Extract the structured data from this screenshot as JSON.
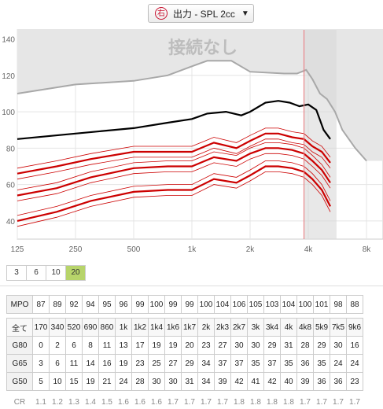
{
  "header": {
    "ear_symbol": "右",
    "title": "出力 - SPL 2cc"
  },
  "chart_data": {
    "type": "line",
    "overlay_text": "接続なし",
    "x_ticks": [
      "125",
      "250",
      "500",
      "1k",
      "2k",
      "4k",
      "8k"
    ],
    "x_tick_values": [
      125,
      250,
      500,
      1000,
      2000,
      4000,
      8000
    ],
    "y_ticks": [
      "40",
      "60",
      "80",
      "100",
      "120",
      "140"
    ],
    "y_tick_values": [
      40,
      60,
      80,
      100,
      120,
      140
    ],
    "xlim": [
      125,
      8000
    ],
    "ylim": [
      30,
      145
    ],
    "log_x": true,
    "marker_frequency": 3800,
    "colors": {
      "main": "#000000",
      "target": "#cc0000",
      "shade": "#e6e6e6",
      "marker": "#e8858a",
      "ucl": "#a8a8a8"
    },
    "series": [
      {
        "role": "ucl",
        "x": [
          125,
          250,
          500,
          750,
          1000,
          1200,
          1600,
          2000,
          3000,
          3500,
          3900,
          4200,
          4600,
          5000,
          5500,
          6000,
          7000,
          8000
        ],
        "y": [
          110,
          115,
          117,
          120,
          125,
          128,
          128,
          122,
          121,
          121,
          123,
          118,
          110,
          107,
          100,
          90,
          80,
          73
        ]
      },
      {
        "role": "main",
        "x": [
          125,
          250,
          500,
          750,
          1000,
          1200,
          1500,
          1800,
          2000,
          2400,
          2800,
          3200,
          3600,
          4000,
          4400,
          4800,
          5200
        ],
        "y": [
          85,
          88,
          91,
          94,
          96,
          99,
          100,
          98,
          100,
          105,
          106,
          105,
          103,
          104,
          101,
          90,
          85
        ]
      },
      {
        "role": "target",
        "x": [
          125,
          200,
          300,
          500,
          750,
          1000,
          1300,
          1700,
          2000,
          2400,
          2800,
          3300,
          3800,
          4200,
          4700,
          5200
        ],
        "y": [
          66,
          70,
          74,
          78,
          78,
          78,
          83,
          80,
          84,
          88,
          88,
          86,
          85,
          81,
          78,
          72
        ]
      },
      {
        "role": "target",
        "x": [
          125,
          200,
          300,
          500,
          750,
          1000,
          1300,
          1700,
          2000,
          2400,
          2800,
          3300,
          3800,
          4200,
          4700,
          5200
        ],
        "y": [
          54,
          58,
          64,
          69,
          70,
          70,
          75,
          73,
          77,
          80,
          80,
          79,
          77,
          73,
          68,
          61
        ]
      },
      {
        "role": "target",
        "x": [
          125,
          200,
          300,
          500,
          750,
          1000,
          1300,
          1700,
          2000,
          2400,
          2800,
          3300,
          3800,
          4200,
          4700,
          5200
        ],
        "y": [
          40,
          45,
          51,
          56,
          57,
          57,
          63,
          61,
          65,
          70,
          70,
          69,
          67,
          63,
          57,
          48
        ]
      }
    ]
  },
  "tabs": [
    "3",
    "6",
    "10",
    "20"
  ],
  "selected_tab": "20",
  "table": {
    "rows": [
      {
        "label": "MPO",
        "cells": [
          "87",
          "89",
          "92",
          "94",
          "95",
          "96",
          "99",
          "100",
          "99",
          "99",
          "100",
          "104",
          "106",
          "105",
          "103",
          "104",
          "100",
          "101",
          "98",
          "88"
        ]
      },
      {
        "label": "全て",
        "cells": [
          "170",
          "340",
          "520",
          "690",
          "860",
          "1k",
          "1k2",
          "1k4",
          "1k6",
          "1k7",
          "2k",
          "2k3",
          "2k7",
          "3k",
          "3k4",
          "4k",
          "4k8",
          "5k9",
          "7k5",
          "9k6"
        ]
      },
      {
        "label": "G80",
        "cells": [
          "0",
          "2",
          "6",
          "8",
          "11",
          "13",
          "17",
          "19",
          "19",
          "20",
          "23",
          "27",
          "30",
          "30",
          "29",
          "31",
          "28",
          "29",
          "30",
          "16"
        ]
      },
      {
        "label": "G65",
        "cells": [
          "3",
          "6",
          "11",
          "14",
          "16",
          "19",
          "23",
          "25",
          "27",
          "29",
          "34",
          "37",
          "37",
          "35",
          "37",
          "35",
          "36",
          "35",
          "24",
          "24"
        ]
      },
      {
        "label": "G50",
        "cells": [
          "5",
          "10",
          "15",
          "19",
          "21",
          "24",
          "28",
          "30",
          "30",
          "31",
          "34",
          "39",
          "42",
          "41",
          "42",
          "40",
          "39",
          "36",
          "36",
          "23"
        ]
      },
      {
        "label": "CR",
        "cells": [
          "1.1",
          "1.2",
          "1.3",
          "1.4",
          "1.5",
          "1.6",
          "1.6",
          "1.6",
          "1.7",
          "1.7",
          "1.7",
          "1.7",
          "1.8",
          "1.8",
          "1.8",
          "1.8",
          "1.7",
          "1.7",
          "1.7",
          "1.7"
        ]
      }
    ]
  }
}
